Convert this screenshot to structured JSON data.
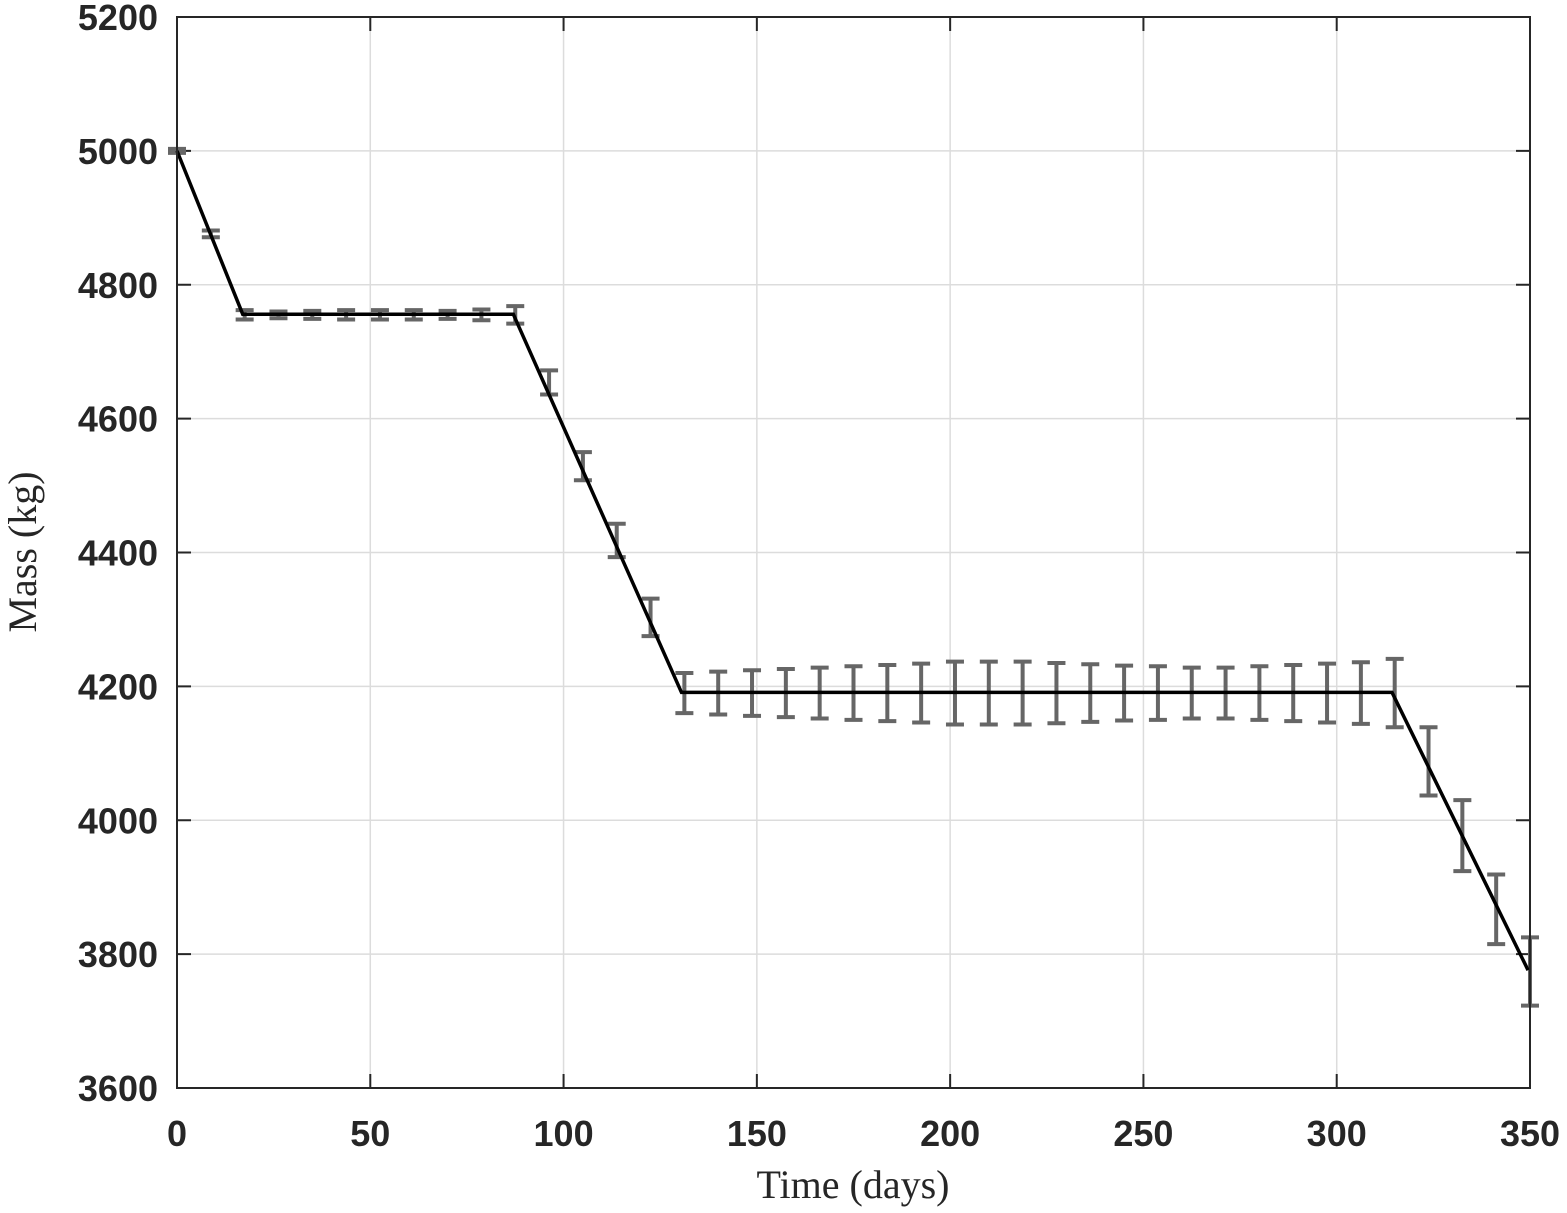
{
  "chart_data": {
    "type": "errorbar",
    "xlabel": "Time (days)",
    "ylabel": "Mass (kg)",
    "xlim": [
      0,
      350
    ],
    "ylim": [
      3600,
      5200
    ],
    "xticks": [
      0,
      50,
      100,
      150,
      200,
      250,
      300,
      350
    ],
    "yticks": [
      3600,
      3800,
      4000,
      4200,
      4400,
      4600,
      4800,
      5000,
      5200
    ],
    "grid": true,
    "line": {
      "color": "#000000",
      "x": [
        0,
        17,
        87,
        130.5,
        314.3,
        349.5
      ],
      "values": [
        5000,
        4756,
        4756,
        4191,
        4191,
        3776
      ]
    },
    "errorbars": {
      "color": "#666666",
      "x": [
        0,
        8.75,
        17.5,
        26.25,
        35,
        43.75,
        52.5,
        61.25,
        70,
        78.75,
        87.5,
        96.25,
        105,
        113.75,
        122.5,
        131.25,
        140,
        148.75,
        157.5,
        166.25,
        175,
        183.75,
        192.5,
        201.25,
        210,
        218.75,
        227.5,
        236.25,
        245,
        253.75,
        262.5,
        271.25,
        280,
        288.75,
        297.5,
        306.25,
        315,
        323.75,
        332.5,
        341.25,
        350
      ],
      "values": [
        5000,
        4876,
        4755,
        4755,
        4755,
        4755,
        4755,
        4755,
        4755,
        4755,
        4755,
        4654,
        4529,
        4418,
        4303,
        4190,
        4190,
        4190,
        4190,
        4190,
        4190,
        4190,
        4190,
        4190,
        4190,
        4190,
        4190,
        4190,
        4190,
        4190,
        4190,
        4190,
        4190,
        4190,
        4190,
        4190,
        4190,
        4088,
        3977,
        3867,
        3774
      ],
      "errors": [
        3,
        5,
        7,
        5,
        6,
        7,
        7,
        7,
        6,
        8,
        13,
        18,
        21,
        25,
        28,
        30,
        32,
        34,
        36,
        38,
        40,
        42,
        44,
        47,
        47,
        47,
        45,
        43,
        41,
        40,
        38,
        38,
        40,
        42,
        44,
        46,
        51,
        51,
        53,
        52,
        51
      ]
    }
  }
}
